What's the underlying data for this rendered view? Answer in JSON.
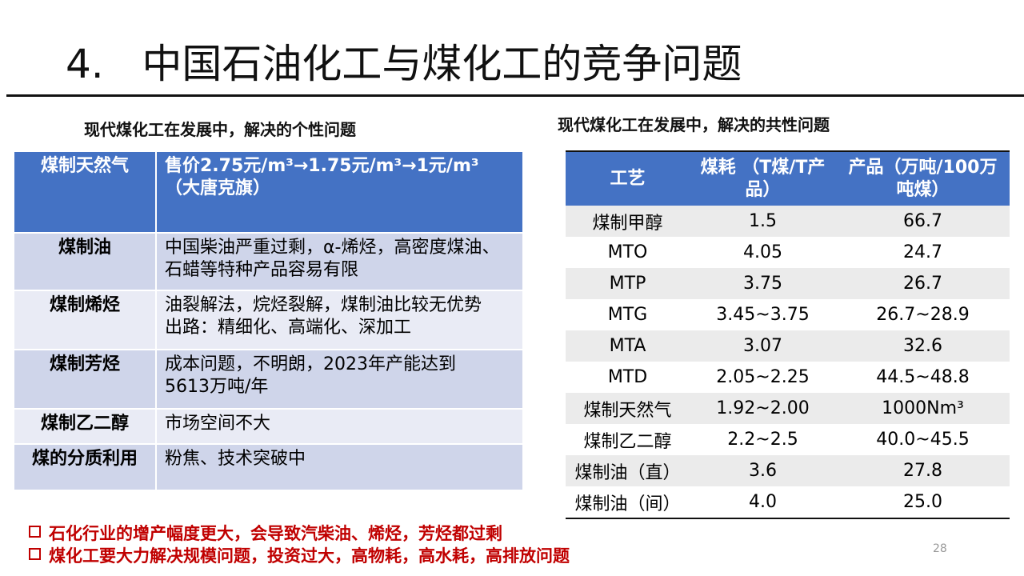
{
  "title": {
    "number": "4.",
    "text": "中国石油化工与煤化工的竞争问题"
  },
  "left": {
    "caption": "现代煤化工在发展中，解决的个性问题",
    "rows": [
      {
        "name": "煤制天然气",
        "lines": [
          "售价2.75元/m³→1.75元/m³→1元/m³",
          "（大唐克旗）"
        ]
      },
      {
        "name": "煤制油",
        "lines": [
          "中国柴油严重过剩，α-烯烃，高密度煤油、",
          "石蜡等特种产品容易有限"
        ]
      },
      {
        "name": "煤制烯烃",
        "lines": [
          "油裂解法，烷烃裂解，煤制油比较无优势",
          "出路：精细化、高端化、深加工"
        ]
      },
      {
        "name": "煤制芳烃",
        "lines": [
          "成本问题，不明朗，2023年产能达到",
          "5613万吨/年"
        ]
      },
      {
        "name": "煤制乙二醇",
        "lines": [
          "市场空间不大"
        ]
      },
      {
        "name": "煤的分质利用",
        "lines": [
          "粉焦、技术突破中"
        ]
      }
    ]
  },
  "right": {
    "caption": "现代煤化工在发展中，解决的共性问题",
    "header": [
      "工艺",
      "煤耗 （T煤/T产品）",
      "产品（万吨/100万吨煤）"
    ],
    "rows": [
      [
        "煤制甲醇",
        "1.5",
        "66.7"
      ],
      [
        "MTO",
        "4.05",
        "24.7"
      ],
      [
        "MTP",
        "3.75",
        "26.7"
      ],
      [
        "MTG",
        "3.45~3.75",
        "26.7~28.9"
      ],
      [
        "MTA",
        "3.07",
        "32.6"
      ],
      [
        "MTD",
        "2.05~2.25",
        "44.5~48.8"
      ],
      [
        "煤制天然气",
        "1.92~2.00",
        "1000Nm³"
      ],
      [
        "煤制乙二醇",
        "2.2~2.5",
        "40.0~45.5"
      ],
      [
        "煤制油（直）",
        "3.6",
        "27.8"
      ],
      [
        "煤制油（间）",
        "4.0",
        "25.0"
      ]
    ]
  },
  "bullets": [
    "石化行业的增产幅度更大，会导致汽柴油、烯烃，芳烃都过剩",
    "煤化工要大力解决规模问题，投资过大，高物耗，高水耗，高排放问题"
  ],
  "page_number": "28"
}
